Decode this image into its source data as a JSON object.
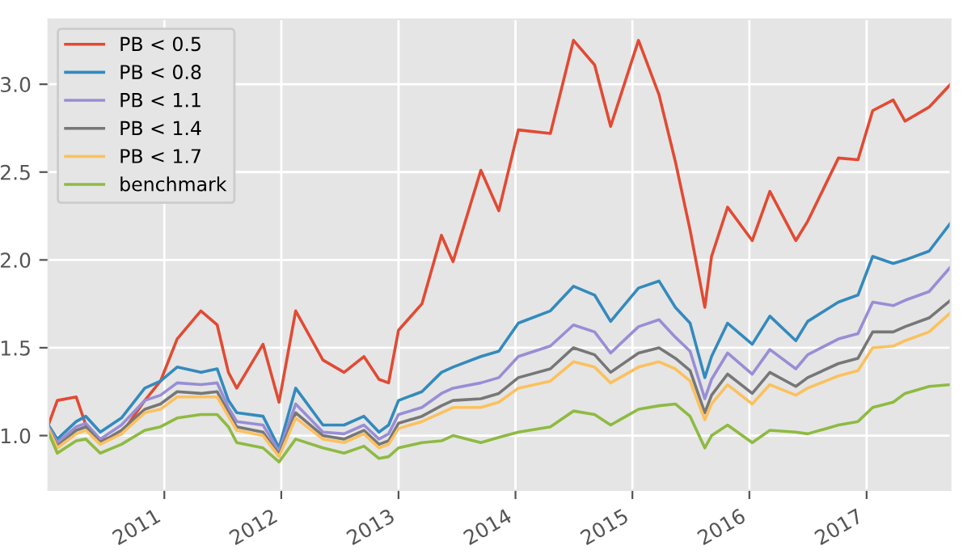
{
  "chart_data": {
    "type": "line",
    "x": [
      "2010-01-04",
      "2010-02-01",
      "2010-04-01",
      "2010-05-01",
      "2010-06-15",
      "2010-08-20",
      "2010-11-01",
      "2010-12-20",
      "2011-02-10",
      "2011-04-25",
      "2011-06-15",
      "2011-07-20",
      "2011-08-15",
      "2011-11-05",
      "2011-12-25",
      "2012-02-15",
      "2012-05-10",
      "2012-07-15",
      "2012-09-15",
      "2012-11-01",
      "2012-12-01",
      "2013-01-01",
      "2013-03-15",
      "2013-05-15",
      "2013-06-20",
      "2013-09-15",
      "2013-11-10",
      "2014-01-10",
      "2014-04-20",
      "2014-07-01",
      "2014-09-05",
      "2014-10-25",
      "2015-01-20",
      "2015-03-25",
      "2015-05-15",
      "2015-06-30",
      "2015-08-15",
      "2015-09-05",
      "2015-10-25",
      "2016-01-10",
      "2016-03-05",
      "2016-05-25",
      "2016-07-01",
      "2016-10-05",
      "2016-12-05",
      "2017-01-20",
      "2017-03-25",
      "2017-05-01",
      "2017-07-15",
      "2017-09-20"
    ],
    "series": [
      {
        "name": "PB < 0.5",
        "color": "#e24a33",
        "values": [
          1.06,
          1.2,
          1.22,
          1.06,
          0.97,
          1.01,
          1.2,
          1.31,
          1.55,
          1.71,
          1.63,
          1.36,
          1.27,
          1.52,
          1.19,
          1.71,
          1.43,
          1.36,
          1.45,
          1.32,
          1.3,
          1.6,
          1.75,
          2.14,
          1.99,
          2.51,
          2.28,
          2.74,
          2.72,
          3.25,
          3.11,
          2.76,
          3.25,
          2.94,
          2.56,
          2.17,
          1.73,
          2.02,
          2.3,
          2.11,
          2.39,
          2.11,
          2.22,
          2.58,
          2.57,
          2.85,
          2.91,
          2.79,
          2.87,
          3.0
        ]
      },
      {
        "name": "PB < 0.8",
        "color": "#348abd",
        "values": [
          1.06,
          0.98,
          1.08,
          1.11,
          1.02,
          1.1,
          1.27,
          1.31,
          1.39,
          1.36,
          1.38,
          1.2,
          1.13,
          1.11,
          0.93,
          1.27,
          1.06,
          1.06,
          1.11,
          1.02,
          1.06,
          1.2,
          1.25,
          1.36,
          1.39,
          1.45,
          1.48,
          1.64,
          1.71,
          1.85,
          1.8,
          1.65,
          1.84,
          1.88,
          1.73,
          1.64,
          1.33,
          1.45,
          1.64,
          1.52,
          1.68,
          1.54,
          1.65,
          1.76,
          1.8,
          2.02,
          1.98,
          2.0,
          2.05,
          2.21
        ]
      },
      {
        "name": "PB < 1.1",
        "color": "#988ed5",
        "values": [
          1.05,
          0.96,
          1.05,
          1.07,
          0.98,
          1.06,
          1.2,
          1.23,
          1.3,
          1.29,
          1.3,
          1.16,
          1.08,
          1.06,
          0.91,
          1.18,
          1.02,
          1.01,
          1.06,
          0.98,
          1.01,
          1.12,
          1.16,
          1.24,
          1.27,
          1.3,
          1.33,
          1.45,
          1.51,
          1.63,
          1.59,
          1.47,
          1.62,
          1.66,
          1.56,
          1.48,
          1.21,
          1.32,
          1.47,
          1.35,
          1.49,
          1.38,
          1.46,
          1.55,
          1.58,
          1.76,
          1.74,
          1.77,
          1.82,
          1.96
        ]
      },
      {
        "name": "PB < 1.4",
        "color": "#777777",
        "values": [
          1.04,
          0.94,
          1.03,
          1.05,
          0.96,
          1.03,
          1.15,
          1.18,
          1.25,
          1.24,
          1.25,
          1.13,
          1.05,
          1.02,
          0.89,
          1.13,
          1.0,
          0.98,
          1.03,
          0.95,
          0.97,
          1.07,
          1.11,
          1.17,
          1.2,
          1.21,
          1.24,
          1.33,
          1.38,
          1.5,
          1.46,
          1.36,
          1.47,
          1.5,
          1.44,
          1.37,
          1.13,
          1.23,
          1.35,
          1.24,
          1.36,
          1.28,
          1.33,
          1.41,
          1.44,
          1.59,
          1.59,
          1.62,
          1.67,
          1.77
        ]
      },
      {
        "name": "PB < 1.7",
        "color": "#fbc15e",
        "values": [
          1.04,
          0.93,
          1.01,
          1.03,
          0.95,
          1.01,
          1.13,
          1.15,
          1.22,
          1.22,
          1.22,
          1.11,
          1.03,
          1.0,
          0.88,
          1.1,
          0.98,
          0.96,
          1.01,
          0.93,
          0.95,
          1.04,
          1.08,
          1.13,
          1.16,
          1.16,
          1.19,
          1.27,
          1.31,
          1.42,
          1.39,
          1.3,
          1.39,
          1.42,
          1.38,
          1.31,
          1.09,
          1.18,
          1.29,
          1.18,
          1.29,
          1.23,
          1.27,
          1.34,
          1.37,
          1.5,
          1.51,
          1.54,
          1.59,
          1.7
        ]
      },
      {
        "name": "benchmark",
        "color": "#8eba42",
        "values": [
          1.02,
          0.9,
          0.97,
          0.98,
          0.9,
          0.95,
          1.03,
          1.05,
          1.1,
          1.12,
          1.12,
          1.05,
          0.96,
          0.93,
          0.85,
          0.98,
          0.93,
          0.9,
          0.94,
          0.87,
          0.88,
          0.93,
          0.96,
          0.97,
          1.0,
          0.96,
          0.99,
          1.02,
          1.05,
          1.14,
          1.12,
          1.06,
          1.15,
          1.17,
          1.18,
          1.11,
          0.93,
          1.0,
          1.06,
          0.96,
          1.03,
          1.02,
          1.01,
          1.06,
          1.08,
          1.16,
          1.19,
          1.24,
          1.28,
          1.29
        ]
      }
    ],
    "xlim": [
      "2010-01-04",
      "2017-09-20"
    ],
    "xticks": [
      {
        "value": "2011-01-01",
        "label": "2011"
      },
      {
        "value": "2012-01-01",
        "label": "2012"
      },
      {
        "value": "2013-01-01",
        "label": "2013"
      },
      {
        "value": "2014-01-01",
        "label": "2014"
      },
      {
        "value": "2015-01-01",
        "label": "2015"
      },
      {
        "value": "2016-01-01",
        "label": "2016"
      },
      {
        "value": "2017-01-01",
        "label": "2017"
      }
    ],
    "ylim": [
      0.69,
      3.37
    ],
    "yticks": [
      {
        "value": 1.0,
        "label": "1.0"
      },
      {
        "value": 1.5,
        "label": "1.5"
      },
      {
        "value": 2.0,
        "label": "2.0"
      },
      {
        "value": 2.5,
        "label": "2.5"
      },
      {
        "value": 3.0,
        "label": "3.0"
      }
    ],
    "grid": true,
    "legend": "top left"
  }
}
